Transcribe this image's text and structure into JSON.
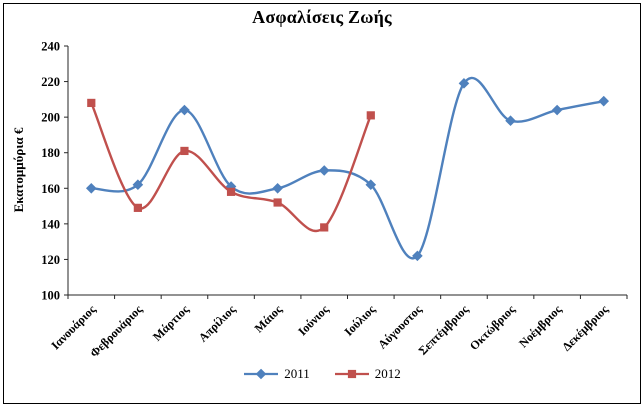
{
  "chart_data": {
    "type": "line",
    "title": "Ασφαλίσεις Ζωής",
    "ylabel": "Εκατομμύρια  €",
    "xlabel": "",
    "ylim": [
      100,
      240
    ],
    "ytick_step": 20,
    "grid": false,
    "legend_position": "bottom",
    "line_style": "smooth",
    "categories": [
      "Ιανουάριος",
      "Φεβρουάριος",
      "Μάρτιος",
      "Απρίλιος",
      "Μάιος",
      "Ιούνιος",
      "Ιούλιος",
      "Αύγουστος",
      "Σεπτέμβριος",
      "Οκτώβριος",
      "Νοέμβριος",
      "Δεκέμβριος"
    ],
    "series": [
      {
        "name": "2011",
        "color": "#4F81BD",
        "marker": "diamond",
        "values": [
          160,
          162,
          204,
          161,
          160,
          170,
          162,
          122,
          219,
          198,
          204,
          209
        ]
      },
      {
        "name": "2012",
        "color": "#C0504D",
        "marker": "square",
        "values": [
          208,
          149,
          181,
          158,
          152,
          138,
          201
        ]
      }
    ],
    "colors": {
      "axis": "#262626",
      "text": "#000000",
      "background": "#ffffff"
    }
  }
}
